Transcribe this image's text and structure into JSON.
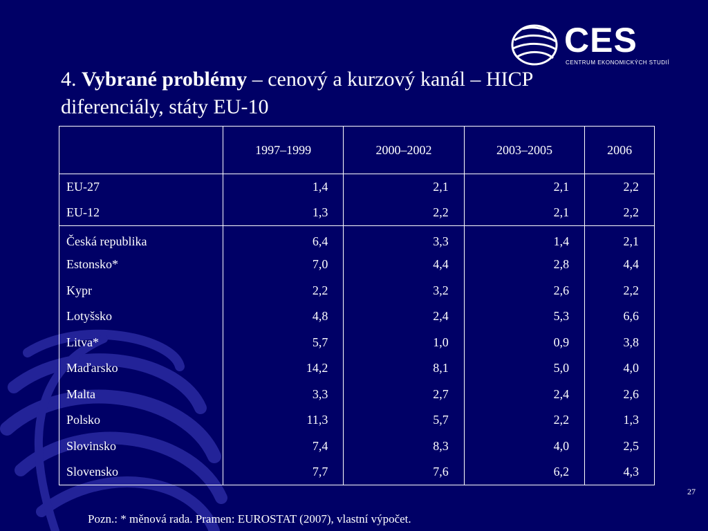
{
  "logo": {
    "name": "CES",
    "subtitle": "CENTRUM EKONOMICKÝCH STUDIÍ"
  },
  "title": {
    "number": "4.",
    "bold": "Vybrané problémy",
    "rest": " – cenový a kurzový kanál – HICP diferenciály, státy EU-10"
  },
  "table": {
    "headers": [
      "",
      "1997–1999",
      "2000–2002",
      "2003–2005",
      "2006"
    ],
    "group1": [
      {
        "label": "EU-27",
        "values": [
          "1,4",
          "2,1",
          "2,1",
          "2,2"
        ]
      },
      {
        "label": "EU-12",
        "values": [
          "1,3",
          "2,2",
          "2,1",
          "2,2"
        ]
      }
    ],
    "group2": [
      {
        "label": "Česká republika",
        "values": [
          "6,4",
          "3,3",
          "1,4",
          "2,1"
        ]
      },
      {
        "label": "Estonsko*",
        "values": [
          "7,0",
          "4,4",
          "2,8",
          "4,4"
        ]
      },
      {
        "label": "Kypr",
        "values": [
          "2,2",
          "3,2",
          "2,6",
          "2,2"
        ]
      },
      {
        "label": "Lotyšsko",
        "values": [
          "4,8",
          "2,4",
          "5,3",
          "6,6"
        ]
      },
      {
        "label": "Litva*",
        "values": [
          "5,7",
          "1,0",
          "0,9",
          "3,8"
        ]
      },
      {
        "label": "Maďarsko",
        "values": [
          "14,2",
          "8,1",
          "5,0",
          "4,0"
        ]
      },
      {
        "label": "Malta",
        "values": [
          "3,3",
          "2,7",
          "2,4",
          "2,6"
        ]
      },
      {
        "label": "Polsko",
        "values": [
          "11,3",
          "5,7",
          "2,2",
          "1,3"
        ]
      },
      {
        "label": "Slovinsko",
        "values": [
          "7,4",
          "8,3",
          "4,0",
          "2,5"
        ]
      },
      {
        "label": "Slovensko",
        "values": [
          "7,7",
          "7,6",
          "6,2",
          "4,3"
        ]
      }
    ]
  },
  "page_number": "27",
  "note": "Pozn.: * měnová rada. Pramen: EUROSTAT (2007), vlastní výpočet.",
  "colors": {
    "background": "#000066",
    "text": "#ffffff",
    "swirl": "#1a1a8c"
  }
}
